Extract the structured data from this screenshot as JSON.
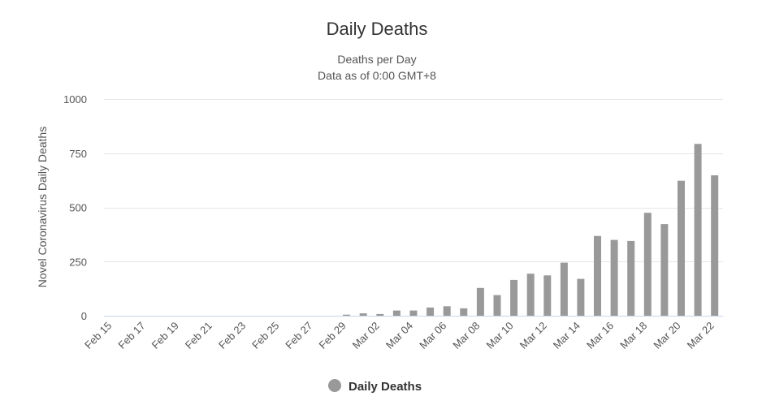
{
  "chart_data": {
    "type": "bar",
    "title": "Daily Deaths",
    "subtitle_lines": [
      "Deaths per Day",
      "Data as of 0:00 GMT+8"
    ],
    "ylabel": "Novel Coronavirus Daily Deaths",
    "xlabel": "",
    "ylim": [
      0,
      1000
    ],
    "yticks": [
      0,
      250,
      500,
      750,
      1000
    ],
    "grid": true,
    "legend_position": "bottom-center",
    "color": "#999999",
    "categories": [
      "Feb 15",
      "Feb 16",
      "Feb 17",
      "Feb 18",
      "Feb 19",
      "Feb 20",
      "Feb 21",
      "Feb 22",
      "Feb 23",
      "Feb 24",
      "Feb 25",
      "Feb 26",
      "Feb 27",
      "Feb 28",
      "Feb 29",
      "Mar 01",
      "Mar 02",
      "Mar 03",
      "Mar 04",
      "Mar 05",
      "Mar 06",
      "Mar 07",
      "Mar 08",
      "Mar 09",
      "Mar 10",
      "Mar 11",
      "Mar 12",
      "Mar 13",
      "Mar 14",
      "Mar 15",
      "Mar 16",
      "Mar 17",
      "Mar 18",
      "Mar 19",
      "Mar 20",
      "Mar 21",
      "Mar 22"
    ],
    "tick_labels": [
      "Feb 15",
      "Feb 17",
      "Feb 19",
      "Feb 21",
      "Feb 23",
      "Feb 25",
      "Feb 27",
      "Feb 29",
      "Mar 02",
      "Mar 04",
      "Mar 06",
      "Mar 08",
      "Mar 10",
      "Mar 12",
      "Mar 14",
      "Mar 16",
      "Mar 18",
      "Mar 20",
      "Mar 22"
    ],
    "series": [
      {
        "name": "Daily Deaths",
        "values": [
          0,
          0,
          0,
          0,
          0,
          0,
          0,
          0,
          0,
          0,
          0,
          0,
          0,
          0,
          5,
          11,
          8,
          24,
          24,
          38,
          44,
          34,
          128,
          95,
          165,
          194,
          186,
          245,
          170,
          368,
          350,
          345,
          475,
          423,
          623,
          793,
          648
        ]
      }
    ]
  }
}
